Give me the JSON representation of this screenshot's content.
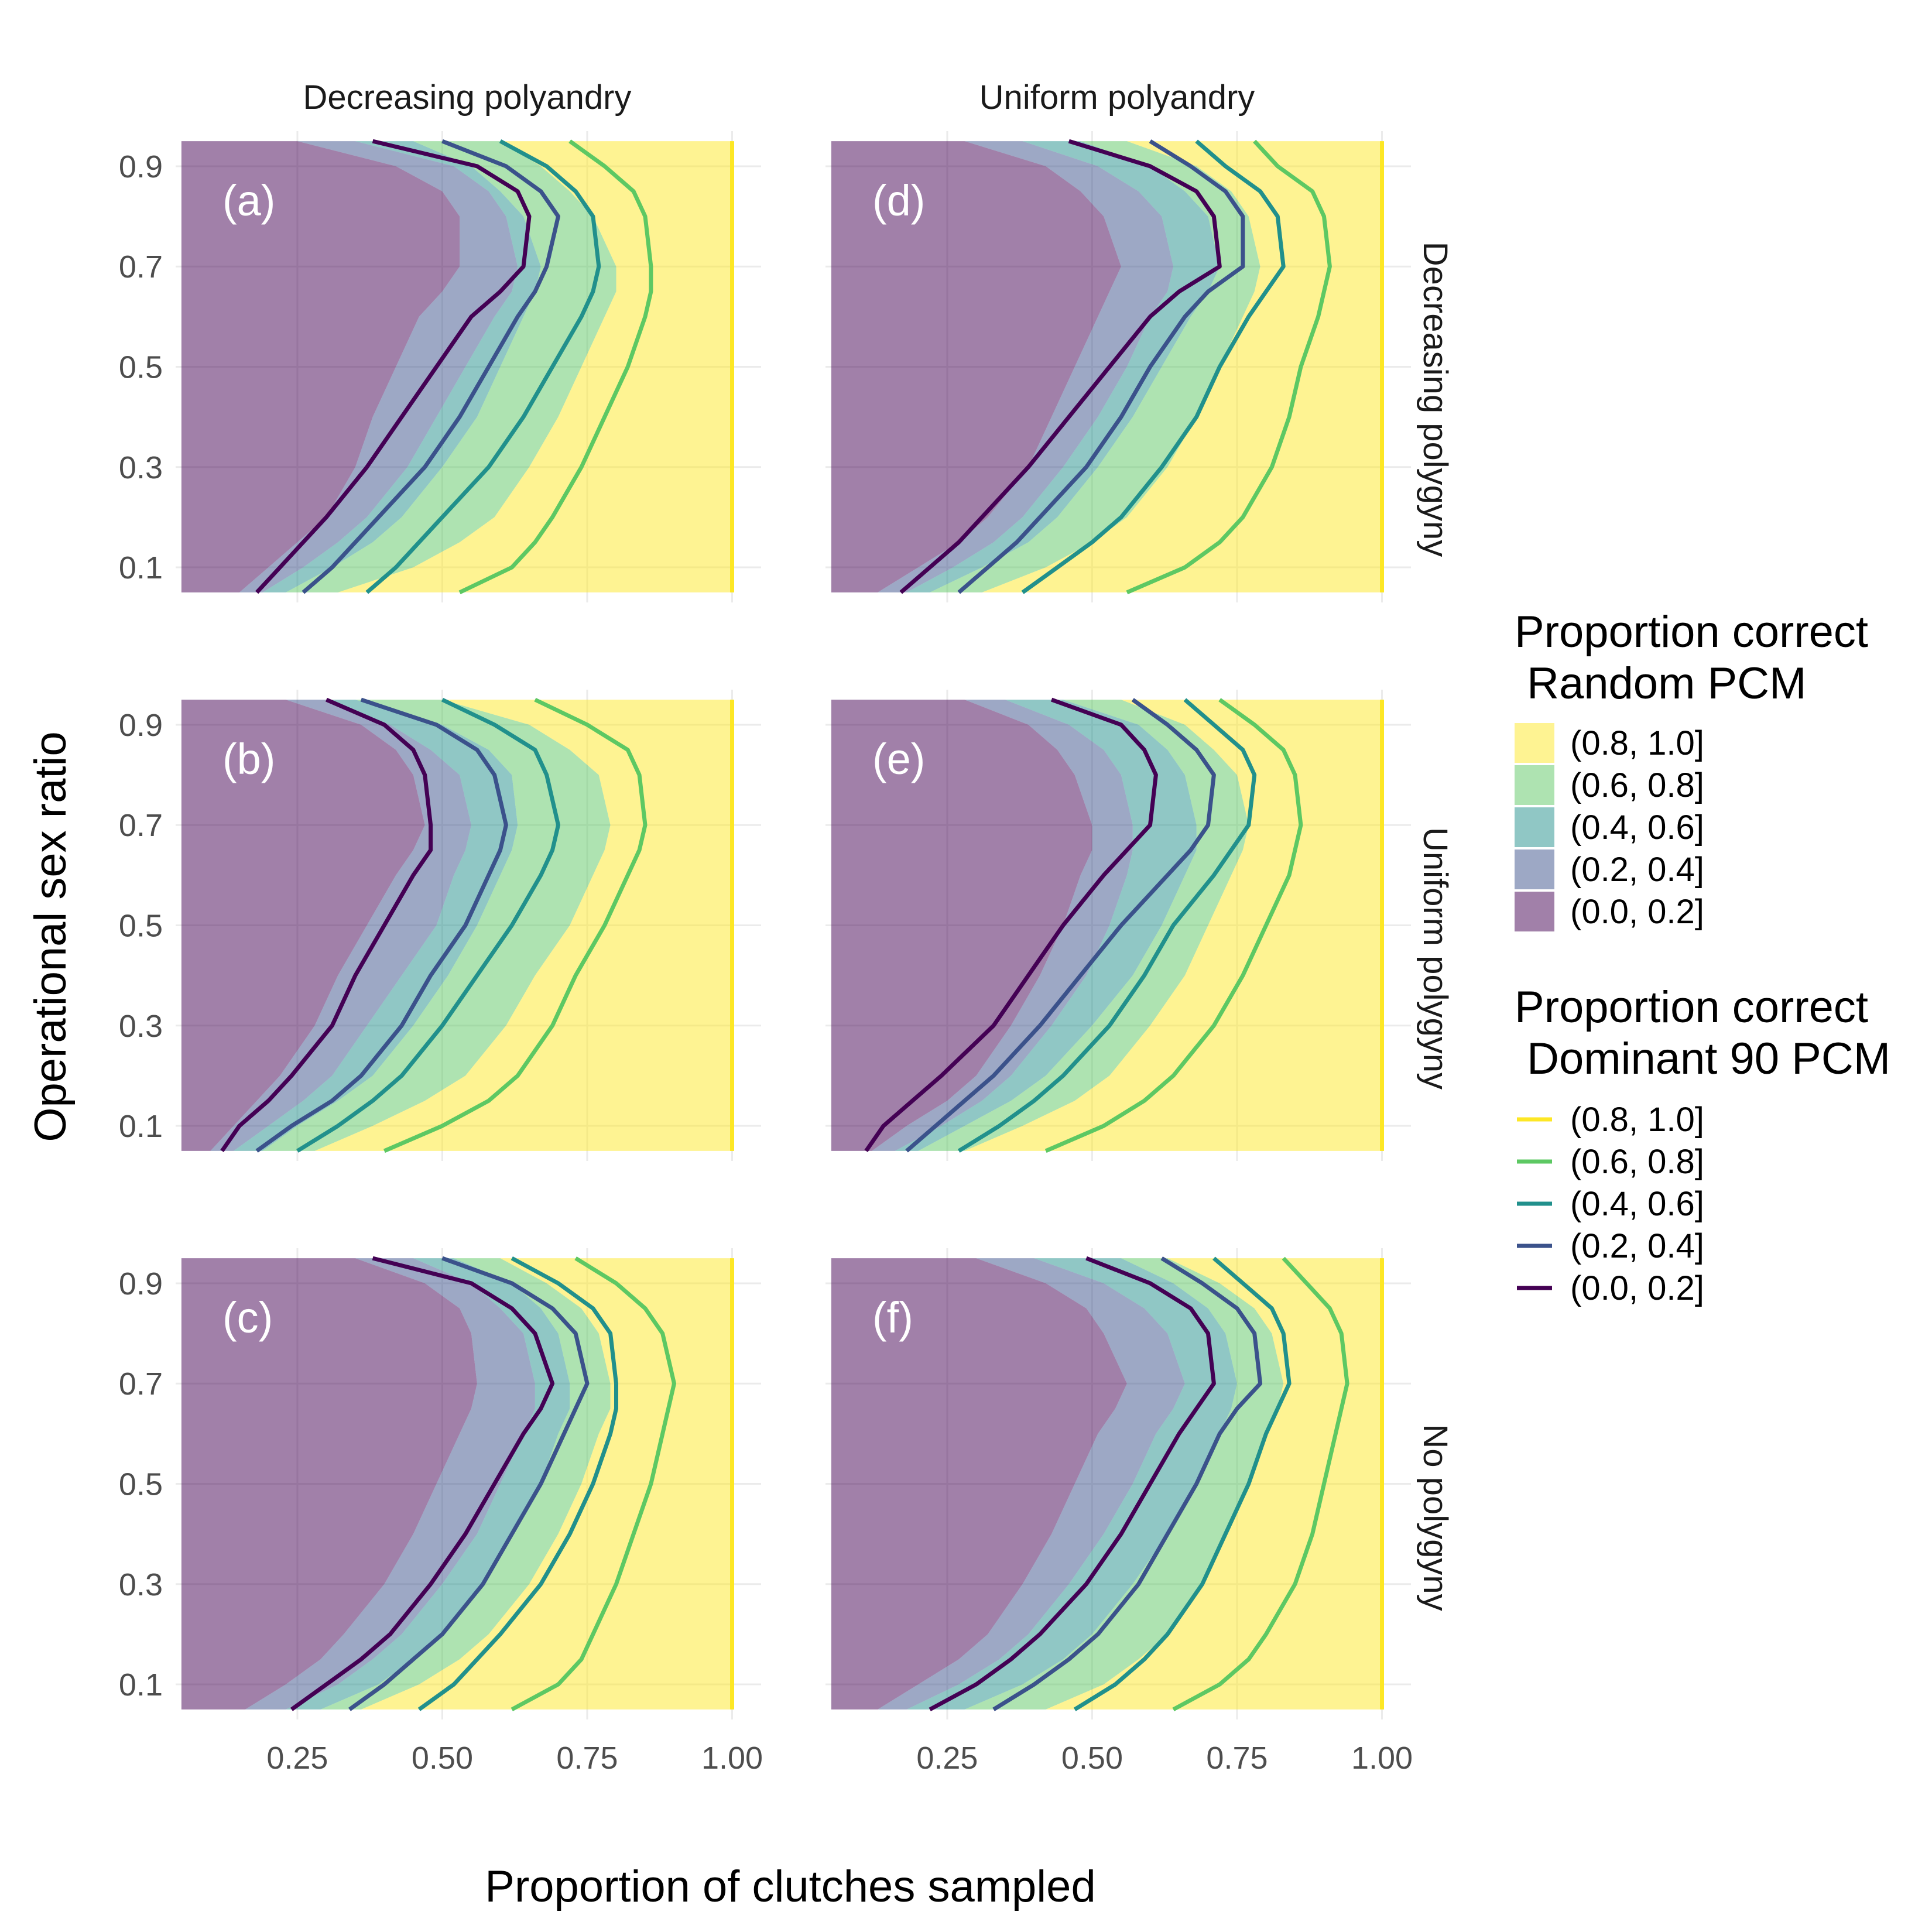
{
  "chart_data": {
    "type": "area",
    "description_free": true,
    "facet_columns": [
      "Decreasing polyandry",
      "Uniform polyandry"
    ],
    "facet_rows": [
      "Decreasing polygyny",
      "Uniform polygyny",
      "No polygyny"
    ],
    "panel_labels": [
      [
        "(a)",
        "(d)"
      ],
      [
        "(b)",
        "(e)"
      ],
      [
        "(c)",
        "(f)"
      ]
    ],
    "xlabel": "Proportion of clutches sampled",
    "ylabel": "Operational sex ratio",
    "xlim": [
      0.04,
      1.05
    ],
    "ylim": [
      0.03,
      0.97
    ],
    "data_range_x": [
      0.05,
      1.0
    ],
    "data_range_y": [
      0.05,
      0.95
    ],
    "x_ticks": [
      0.25,
      0.5,
      0.75,
      1.0
    ],
    "x_tick_labels": [
      "0.25",
      "0.50",
      "0.75",
      "1.00"
    ],
    "y_ticks": [
      0.1,
      0.3,
      0.5,
      0.7,
      0.9
    ],
    "y_tick_labels": [
      "0.1",
      "0.3",
      "0.5",
      "0.7",
      "0.9"
    ],
    "y_levels": [
      0.05,
      0.1,
      0.15,
      0.2,
      0.3,
      0.4,
      0.5,
      0.6,
      0.65,
      0.7,
      0.8,
      0.85,
      0.9,
      0.95
    ],
    "grid": true,
    "legend_placement": "right",
    "legend_fill": {
      "title": "Proportion correct\n Random PCM",
      "entries": [
        "(0.8, 1.0]",
        "(0.6, 0.8]",
        "(0.4, 0.6]",
        "(0.2, 0.4]",
        "(0.0, 0.2]"
      ],
      "colors": [
        "#FDE725",
        "#5DC863",
        "#21908C",
        "#3B528B",
        "#440154"
      ]
    },
    "legend_line": {
      "title": "Proportion correct\n Dominant 90 PCM",
      "entries": [
        "(0.8, 1.0]",
        "(0.6, 0.8]",
        "(0.4, 0.6]",
        "(0.2, 0.4]",
        "(0.0, 0.2]"
      ],
      "colors": [
        "#FDE725",
        "#5DC863",
        "#21908C",
        "#3B528B",
        "#440154"
      ]
    },
    "panels": [
      {
        "label": "(a)",
        "row": 0,
        "col": 0,
        "fill_boundaries": [
          [
            0.15,
            0.2,
            0.25,
            0.3,
            0.35,
            0.38,
            0.42,
            0.46,
            0.5,
            0.53,
            0.53,
            0.5,
            0.42,
            0.25
          ],
          [
            0.19,
            0.26,
            0.32,
            0.37,
            0.44,
            0.49,
            0.54,
            0.59,
            0.62,
            0.63,
            0.61,
            0.58,
            0.52,
            0.35
          ],
          [
            0.23,
            0.31,
            0.38,
            0.43,
            0.5,
            0.56,
            0.6,
            0.64,
            0.66,
            0.67,
            0.64,
            0.6,
            0.55,
            0.45
          ],
          [
            0.32,
            0.45,
            0.53,
            0.59,
            0.65,
            0.7,
            0.74,
            0.78,
            0.8,
            0.8,
            0.76,
            0.72,
            0.67,
            0.6
          ]
        ],
        "lines": [
          [
            0.18,
            0.22,
            0.26,
            0.3,
            0.37,
            0.43,
            0.49,
            0.55,
            0.6,
            0.64,
            0.65,
            0.63,
            0.56,
            0.38
          ],
          [
            0.26,
            0.31,
            0.35,
            0.39,
            0.47,
            0.53,
            0.58,
            0.63,
            0.66,
            0.68,
            0.7,
            0.67,
            0.61,
            0.5
          ],
          [
            0.37,
            0.42,
            0.46,
            0.5,
            0.58,
            0.64,
            0.69,
            0.74,
            0.76,
            0.77,
            0.76,
            0.73,
            0.68,
            0.6
          ],
          [
            0.53,
            0.62,
            0.66,
            0.69,
            0.74,
            0.78,
            0.82,
            0.85,
            0.86,
            0.86,
            0.85,
            0.83,
            0.78,
            0.72
          ],
          [
            1.0,
            1.0,
            1.0,
            1.0,
            1.0,
            1.0,
            1.0,
            1.0,
            1.0,
            1.0,
            1.0,
            1.0,
            1.0,
            1.0
          ]
        ]
      },
      {
        "label": "(b)",
        "row": 1,
        "col": 0,
        "fill_boundaries": [
          [
            0.1,
            0.14,
            0.18,
            0.22,
            0.28,
            0.32,
            0.37,
            0.42,
            0.45,
            0.47,
            0.45,
            0.42,
            0.36,
            0.23
          ],
          [
            0.14,
            0.2,
            0.26,
            0.31,
            0.37,
            0.43,
            0.49,
            0.52,
            0.54,
            0.55,
            0.53,
            0.48,
            0.41,
            0.3
          ],
          [
            0.19,
            0.25,
            0.32,
            0.38,
            0.45,
            0.51,
            0.56,
            0.6,
            0.62,
            0.63,
            0.62,
            0.58,
            0.5,
            0.35
          ],
          [
            0.28,
            0.38,
            0.47,
            0.54,
            0.61,
            0.66,
            0.72,
            0.76,
            0.78,
            0.79,
            0.77,
            0.72,
            0.65,
            0.5
          ]
        ],
        "lines": [
          [
            0.12,
            0.15,
            0.2,
            0.24,
            0.31,
            0.35,
            0.4,
            0.45,
            0.48,
            0.48,
            0.47,
            0.45,
            0.4,
            0.3
          ],
          [
            0.18,
            0.24,
            0.31,
            0.36,
            0.43,
            0.48,
            0.54,
            0.58,
            0.6,
            0.61,
            0.59,
            0.56,
            0.49,
            0.36
          ],
          [
            0.25,
            0.32,
            0.38,
            0.43,
            0.5,
            0.56,
            0.62,
            0.67,
            0.69,
            0.7,
            0.68,
            0.66,
            0.59,
            0.5
          ],
          [
            0.4,
            0.5,
            0.58,
            0.63,
            0.69,
            0.73,
            0.78,
            0.82,
            0.84,
            0.85,
            0.84,
            0.82,
            0.75,
            0.66
          ],
          [
            1.0,
            1.0,
            1.0,
            1.0,
            1.0,
            1.0,
            1.0,
            1.0,
            1.0,
            1.0,
            1.0,
            1.0,
            1.0,
            1.0
          ]
        ]
      },
      {
        "label": "(c)",
        "row": 2,
        "col": 0,
        "fill_boundaries": [
          [
            0.16,
            0.23,
            0.29,
            0.33,
            0.4,
            0.45,
            0.49,
            0.53,
            0.55,
            0.56,
            0.55,
            0.53,
            0.47,
            0.35
          ],
          [
            0.23,
            0.32,
            0.38,
            0.43,
            0.5,
            0.56,
            0.6,
            0.64,
            0.66,
            0.66,
            0.64,
            0.6,
            0.55,
            0.45
          ],
          [
            0.29,
            0.39,
            0.45,
            0.5,
            0.57,
            0.62,
            0.67,
            0.7,
            0.72,
            0.72,
            0.7,
            0.67,
            0.62,
            0.52
          ],
          [
            0.36,
            0.46,
            0.53,
            0.58,
            0.65,
            0.7,
            0.74,
            0.77,
            0.79,
            0.79,
            0.77,
            0.74,
            0.68,
            0.6
          ]
        ],
        "lines": [
          [
            0.24,
            0.3,
            0.36,
            0.41,
            0.48,
            0.54,
            0.59,
            0.64,
            0.67,
            0.69,
            0.66,
            0.62,
            0.55,
            0.38
          ],
          [
            0.34,
            0.4,
            0.45,
            0.5,
            0.57,
            0.62,
            0.67,
            0.71,
            0.73,
            0.75,
            0.73,
            0.69,
            0.62,
            0.5
          ],
          [
            0.46,
            0.52,
            0.56,
            0.6,
            0.67,
            0.72,
            0.76,
            0.79,
            0.8,
            0.8,
            0.79,
            0.76,
            0.7,
            0.62
          ],
          [
            0.62,
            0.7,
            0.74,
            0.76,
            0.8,
            0.83,
            0.86,
            0.88,
            0.89,
            0.9,
            0.88,
            0.85,
            0.8,
            0.73
          ],
          [
            1.0,
            1.0,
            1.0,
            1.0,
            1.0,
            1.0,
            1.0,
            1.0,
            1.0,
            1.0,
            1.0,
            1.0,
            1.0,
            1.0
          ]
        ]
      },
      {
        "label": "(d)",
        "row": 0,
        "col": 1,
        "fill_boundaries": [
          [
            0.13,
            0.2,
            0.27,
            0.32,
            0.39,
            0.43,
            0.47,
            0.51,
            0.53,
            0.55,
            0.52,
            0.48,
            0.42,
            0.28
          ],
          [
            0.18,
            0.26,
            0.33,
            0.38,
            0.45,
            0.51,
            0.56,
            0.6,
            0.63,
            0.64,
            0.62,
            0.58,
            0.51,
            0.38
          ],
          [
            0.22,
            0.31,
            0.39,
            0.44,
            0.51,
            0.57,
            0.62,
            0.67,
            0.7,
            0.72,
            0.7,
            0.66,
            0.6,
            0.48
          ],
          [
            0.31,
            0.42,
            0.5,
            0.56,
            0.63,
            0.68,
            0.72,
            0.76,
            0.78,
            0.79,
            0.77,
            0.74,
            0.68,
            0.56
          ]
        ],
        "lines": [
          [
            0.17,
            0.22,
            0.27,
            0.31,
            0.39,
            0.46,
            0.53,
            0.6,
            0.65,
            0.72,
            0.71,
            0.68,
            0.6,
            0.46
          ],
          [
            0.27,
            0.32,
            0.37,
            0.41,
            0.49,
            0.55,
            0.6,
            0.66,
            0.7,
            0.76,
            0.76,
            0.73,
            0.67,
            0.6
          ],
          [
            0.38,
            0.44,
            0.5,
            0.55,
            0.62,
            0.68,
            0.72,
            0.77,
            0.8,
            0.83,
            0.82,
            0.79,
            0.73,
            0.68
          ],
          [
            0.56,
            0.66,
            0.72,
            0.76,
            0.81,
            0.84,
            0.86,
            0.89,
            0.9,
            0.91,
            0.9,
            0.88,
            0.82,
            0.78
          ],
          [
            1.0,
            1.0,
            1.0,
            1.0,
            1.0,
            1.0,
            1.0,
            1.0,
            1.0,
            1.0,
            1.0,
            1.0,
            1.0,
            1.0
          ]
        ]
      },
      {
        "label": "(e)",
        "row": 1,
        "col": 1,
        "fill_boundaries": [
          [
            0.12,
            0.18,
            0.25,
            0.3,
            0.36,
            0.41,
            0.45,
            0.48,
            0.5,
            0.5,
            0.47,
            0.44,
            0.39,
            0.28
          ],
          [
            0.16,
            0.24,
            0.31,
            0.36,
            0.43,
            0.49,
            0.53,
            0.56,
            0.57,
            0.57,
            0.55,
            0.52,
            0.46,
            0.35
          ],
          [
            0.2,
            0.28,
            0.36,
            0.42,
            0.5,
            0.57,
            0.62,
            0.66,
            0.68,
            0.68,
            0.66,
            0.63,
            0.58,
            0.45
          ],
          [
            0.28,
            0.38,
            0.47,
            0.53,
            0.6,
            0.66,
            0.7,
            0.74,
            0.76,
            0.77,
            0.75,
            0.71,
            0.66,
            0.55
          ]
        ],
        "lines": [
          [
            0.11,
            0.14,
            0.19,
            0.24,
            0.33,
            0.39,
            0.45,
            0.52,
            0.56,
            0.6,
            0.61,
            0.59,
            0.55,
            0.43
          ],
          [
            0.18,
            0.23,
            0.28,
            0.33,
            0.41,
            0.48,
            0.55,
            0.63,
            0.67,
            0.7,
            0.71,
            0.68,
            0.63,
            0.57
          ],
          [
            0.27,
            0.34,
            0.4,
            0.45,
            0.53,
            0.59,
            0.64,
            0.71,
            0.74,
            0.77,
            0.78,
            0.76,
            0.71,
            0.66
          ],
          [
            0.42,
            0.52,
            0.59,
            0.64,
            0.71,
            0.76,
            0.8,
            0.84,
            0.85,
            0.86,
            0.85,
            0.83,
            0.78,
            0.72
          ],
          [
            1.0,
            1.0,
            1.0,
            1.0,
            1.0,
            1.0,
            1.0,
            1.0,
            1.0,
            1.0,
            1.0,
            1.0,
            1.0,
            1.0
          ]
        ]
      },
      {
        "label": "(f)",
        "row": 2,
        "col": 1,
        "fill_boundaries": [
          [
            0.13,
            0.2,
            0.27,
            0.32,
            0.38,
            0.43,
            0.47,
            0.51,
            0.54,
            0.56,
            0.52,
            0.49,
            0.42,
            0.3
          ],
          [
            0.18,
            0.27,
            0.34,
            0.39,
            0.46,
            0.52,
            0.57,
            0.61,
            0.64,
            0.66,
            0.63,
            0.59,
            0.52,
            0.4
          ],
          [
            0.28,
            0.38,
            0.45,
            0.5,
            0.57,
            0.63,
            0.68,
            0.72,
            0.74,
            0.75,
            0.73,
            0.7,
            0.64,
            0.55
          ],
          [
            0.42,
            0.52,
            0.58,
            0.63,
            0.69,
            0.73,
            0.77,
            0.8,
            0.82,
            0.83,
            0.81,
            0.78,
            0.72,
            0.63
          ]
        ],
        "lines": [
          [
            0.22,
            0.3,
            0.36,
            0.41,
            0.49,
            0.55,
            0.6,
            0.65,
            0.68,
            0.71,
            0.7,
            0.67,
            0.6,
            0.49
          ],
          [
            0.33,
            0.4,
            0.46,
            0.51,
            0.58,
            0.63,
            0.68,
            0.72,
            0.75,
            0.79,
            0.78,
            0.75,
            0.69,
            0.62
          ],
          [
            0.47,
            0.54,
            0.59,
            0.63,
            0.69,
            0.73,
            0.77,
            0.8,
            0.82,
            0.84,
            0.83,
            0.81,
            0.76,
            0.71
          ],
          [
            0.64,
            0.72,
            0.77,
            0.8,
            0.85,
            0.88,
            0.9,
            0.92,
            0.93,
            0.94,
            0.93,
            0.91,
            0.87,
            0.83
          ],
          [
            1.0,
            1.0,
            1.0,
            1.0,
            1.0,
            1.0,
            1.0,
            1.0,
            1.0,
            1.0,
            1.0,
            1.0,
            1.0,
            1.0
          ]
        ]
      }
    ]
  }
}
